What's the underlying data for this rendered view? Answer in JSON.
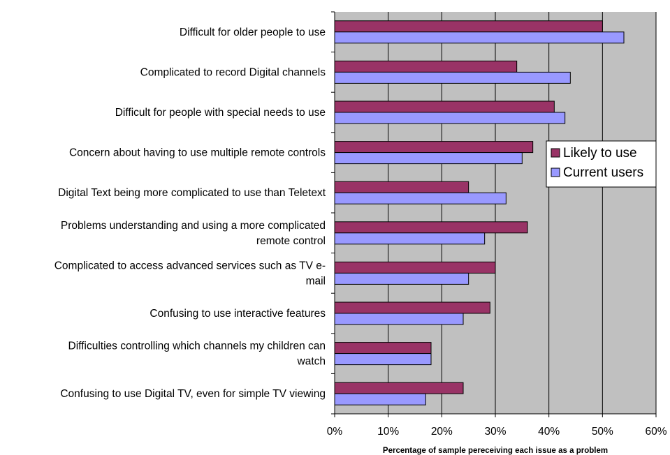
{
  "chart_data": {
    "type": "bar",
    "orientation": "horizontal",
    "categories": [
      "Difficult for older people to use",
      "Complicated to record Digital channels",
      "Difficult for people with special needs to use",
      "Concern about having to use multiple remote controls",
      "Digital Text being more complicated to use than Teletext",
      "Problems understanding and using a more complicated remote control",
      "Complicated to access advanced services such as TV e-mail",
      "Confusing to use interactive features",
      "Difficulties controlling which channels my children can watch",
      "Confusing to use Digital TV, even for simple TV viewing"
    ],
    "category_lines": [
      [
        "Difficult for older people to use"
      ],
      [
        "Complicated to record Digital channels"
      ],
      [
        "Difficult for people with special needs to use"
      ],
      [
        "Concern about having to use multiple remote controls"
      ],
      [
        "Digital Text being more complicated to use than Teletext"
      ],
      [
        "Problems understanding and using a more complicated",
        "remote control"
      ],
      [
        "Complicated to access advanced services such as TV e-",
        "mail"
      ],
      [
        "Confusing to use interactive features"
      ],
      [
        "Difficulties controlling which channels my children can",
        "watch"
      ],
      [
        "Confusing to use Digital TV, even for simple TV viewing"
      ]
    ],
    "series": [
      {
        "name": "Likely to use",
        "color": "#993366",
        "values": [
          50,
          34,
          41,
          37,
          25,
          36,
          30,
          29,
          18,
          24
        ]
      },
      {
        "name": "Current users",
        "color": "#9999ff",
        "values": [
          54,
          44,
          43,
          35,
          32,
          28,
          25,
          24,
          18,
          17
        ]
      }
    ],
    "xlabel": "Percentage of sample pereceiving each issue as a problem",
    "xlim": [
      0,
      60
    ],
    "xticks": [
      "0%",
      "10%",
      "20%",
      "30%",
      "40%",
      "50%",
      "60%"
    ],
    "plot_background": "#c0c0c0",
    "grid": true,
    "legend_position": "right"
  }
}
